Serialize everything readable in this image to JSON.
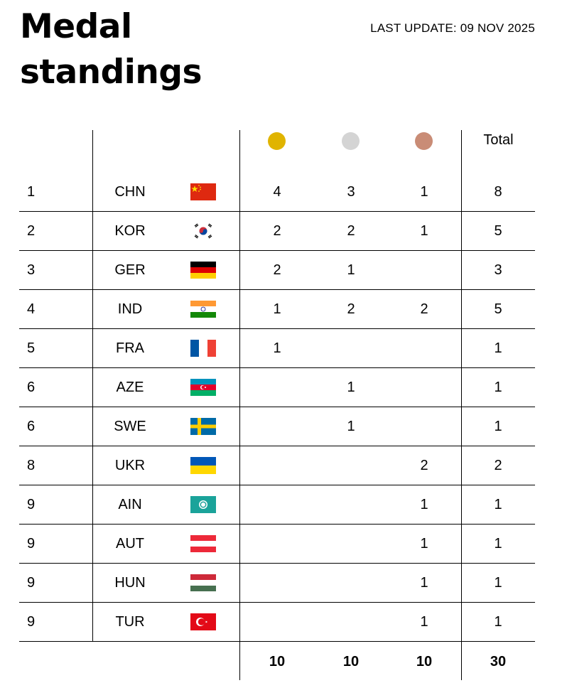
{
  "header": {
    "title": "Medal standings",
    "last_update": "LAST UPDATE: 09 NOV 2025"
  },
  "columns": {
    "total_label": "Total",
    "gold_color": "#E0B400",
    "silver_color": "#D4D4D4",
    "bronze_color": "#C98C76"
  },
  "rows": [
    {
      "rank": "1",
      "code": "CHN",
      "flag": "china-flag-icon",
      "gold": "4",
      "silver": "3",
      "bronze": "1",
      "total": "8"
    },
    {
      "rank": "2",
      "code": "KOR",
      "flag": "korea-flag-icon",
      "gold": "2",
      "silver": "2",
      "bronze": "1",
      "total": "5"
    },
    {
      "rank": "3",
      "code": "GER",
      "flag": "germany-flag-icon",
      "gold": "2",
      "silver": "1",
      "bronze": "",
      "total": "3"
    },
    {
      "rank": "4",
      "code": "IND",
      "flag": "india-flag-icon",
      "gold": "1",
      "silver": "2",
      "bronze": "2",
      "total": "5"
    },
    {
      "rank": "5",
      "code": "FRA",
      "flag": "france-flag-icon",
      "gold": "1",
      "silver": "",
      "bronze": "",
      "total": "1"
    },
    {
      "rank": "6",
      "code": "AZE",
      "flag": "azerbaijan-flag-icon",
      "gold": "",
      "silver": "1",
      "bronze": "",
      "total": "1"
    },
    {
      "rank": "6",
      "code": "SWE",
      "flag": "sweden-flag-icon",
      "gold": "",
      "silver": "1",
      "bronze": "",
      "total": "1"
    },
    {
      "rank": "8",
      "code": "UKR",
      "flag": "ukraine-flag-icon",
      "gold": "",
      "silver": "",
      "bronze": "2",
      "total": "2"
    },
    {
      "rank": "9",
      "code": "AIN",
      "flag": "ain-flag-icon",
      "gold": "",
      "silver": "",
      "bronze": "1",
      "total": "1"
    },
    {
      "rank": "9",
      "code": "AUT",
      "flag": "austria-flag-icon",
      "gold": "",
      "silver": "",
      "bronze": "1",
      "total": "1"
    },
    {
      "rank": "9",
      "code": "HUN",
      "flag": "hungary-flag-icon",
      "gold": "",
      "silver": "",
      "bronze": "1",
      "total": "1"
    },
    {
      "rank": "9",
      "code": "TUR",
      "flag": "turkey-flag-icon",
      "gold": "",
      "silver": "",
      "bronze": "1",
      "total": "1"
    }
  ],
  "totals": {
    "gold": "10",
    "silver": "10",
    "bronze": "10",
    "total": "30"
  }
}
